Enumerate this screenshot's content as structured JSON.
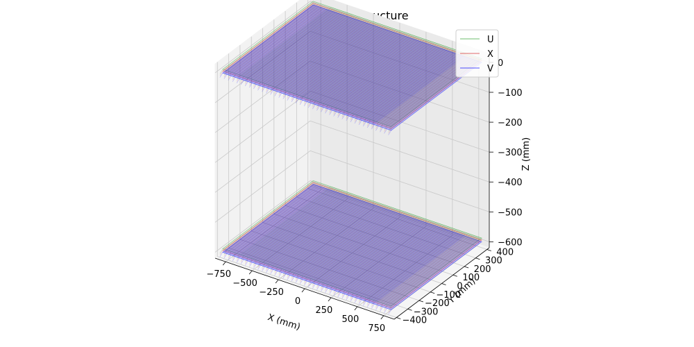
{
  "chart_data": {
    "type": "3d-wire",
    "title": "PDC wire 3D structure",
    "xlabel": "X (mm)",
    "ylabel": "Y (mm)",
    "zlabel": "Z (mm)",
    "x_ticks": [
      -750,
      -500,
      -250,
      0,
      250,
      500,
      750
    ],
    "y_ticks": [
      -400,
      -300,
      -200,
      -100,
      0,
      100,
      200,
      300,
      400
    ],
    "z_ticks": [
      0,
      -100,
      -200,
      -300,
      -400,
      -500,
      -600
    ],
    "xlim": [
      -850,
      850
    ],
    "ylim": [
      -420,
      420
    ],
    "zlim": [
      -620,
      30
    ],
    "grid": true,
    "legend_position": "top-right",
    "planes": [
      {
        "z": 0,
        "x_range": [
          -800,
          800
        ],
        "y_range": [
          -400,
          400
        ]
      },
      {
        "z": -600,
        "x_range": [
          -800,
          800
        ],
        "y_range": [
          -400,
          400
        ]
      }
    ],
    "series": [
      {
        "name": "U",
        "color": "#2ca02c",
        "layers": [
          12,
          -588
        ]
      },
      {
        "name": "X",
        "color": "#d62728",
        "layers": [
          6,
          -594
        ]
      },
      {
        "name": "V",
        "color": "#0000ff",
        "layers": [
          0,
          -600
        ]
      }
    ]
  }
}
